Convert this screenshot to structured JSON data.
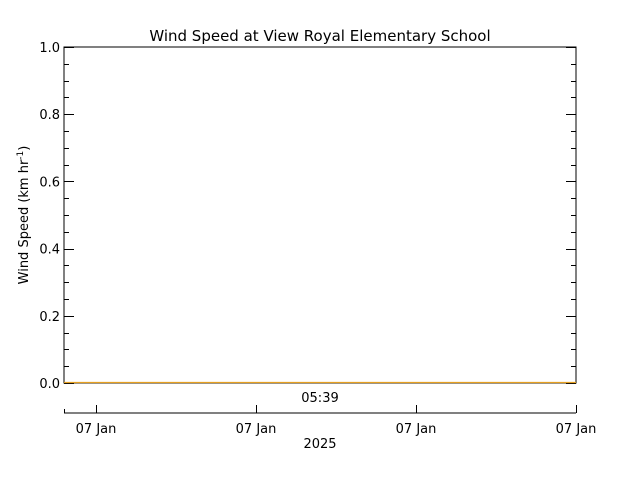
{
  "chart_data": {
    "type": "line",
    "title": "Wind Speed at View Royal Elementary School",
    "ylabel": "Wind Speed (km hr",
    "ylabel_exponent": "-1",
    "ylabel_close": ")",
    "ylim": [
      0.0,
      1.0
    ],
    "yticks": [
      "0.0",
      "0.2",
      "0.4",
      "0.6",
      "0.8",
      "1.0"
    ],
    "yticks_values": [
      0.0,
      0.2,
      0.4,
      0.6,
      0.8,
      1.0
    ],
    "time_annotation": "05:39",
    "xtick_labels": [
      "07 Jan",
      "07 Jan",
      "07 Jan",
      "07 Jan"
    ],
    "xlabel": "2025",
    "series": [
      {
        "values": [
          0.0,
          0.0
        ],
        "color": "#e6a020"
      }
    ],
    "grid": false
  },
  "colors": {
    "axis": "#000000",
    "series_line": "#e6a020"
  }
}
